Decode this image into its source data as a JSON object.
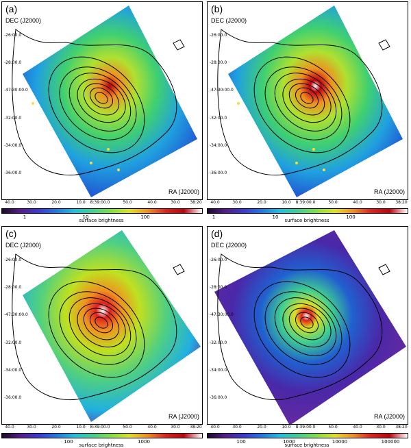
{
  "panels": [
    {
      "label": "(a)",
      "dec_label": "DEC (J2000)",
      "ra_label": "RA (J2000)",
      "y_ticks": [
        "-26:00.0",
        "-28:00.0",
        "-47:30:00.0",
        "-32:00.0",
        "-34:00.0",
        "-36:00.0"
      ],
      "x_ticks": [
        "40.0",
        "30.0",
        "20.0",
        "10.0",
        "8:39:00.0",
        "50.0",
        "40.0",
        "30.0",
        "38:20"
      ],
      "colorbar_ticks": [
        "1",
        "10",
        "100"
      ],
      "colorbar_title": "surface brightness"
    },
    {
      "label": "(b)",
      "dec_label": "DEC (J2000)",
      "ra_label": "RA (J2000)",
      "y_ticks": [
        "-26:00.0",
        "-28:00.0",
        "-47:30:00.0",
        "-32:00.0",
        "-34:00.0",
        "-36:00.0"
      ],
      "x_ticks": [
        "40.0",
        "30.0",
        "20.0",
        "10.0",
        "8:39:00.0",
        "50.0",
        "40.0",
        "30.0",
        "38:20"
      ],
      "colorbar_ticks": [
        "1",
        "10",
        "100"
      ],
      "colorbar_title": "surface brightness"
    },
    {
      "label": "(c)",
      "dec_label": "DEC (J2000)",
      "ra_label": "RA (J2000)",
      "y_ticks": [
        "-26:00.0",
        "-28:00.0",
        "-47:30:00.0",
        "-32:00.0",
        "-34:00.0",
        "-36:00.0"
      ],
      "x_ticks": [
        "40.0",
        "30.0",
        "20.0",
        "10.0",
        "8:39:00.0",
        "50.0",
        "40.0",
        "30.0",
        "38:20"
      ],
      "colorbar_ticks": [
        "100",
        "1000"
      ],
      "colorbar_title": "surface brightness"
    },
    {
      "label": "(d)",
      "dec_label": "DEC (J2000)",
      "ra_label": "RA (J2000)",
      "y_ticks": [
        "-26:00.0",
        "-28:00.0",
        "-47:30:00.0",
        "-32:00.0",
        "-34:00.0",
        "-36:00.0"
      ],
      "x_ticks": [
        "40.0",
        "30.0",
        "20.0",
        "10.0",
        "8:39:00.0",
        "50.0",
        "40.0",
        "30.0",
        "38:20"
      ],
      "colorbar_ticks": [
        "100",
        "1000",
        "10000",
        "100000"
      ],
      "colorbar_title": "surface brightness"
    }
  ],
  "colors": {
    "colormap": [
      "#1a0a2e",
      "#5a1a8c",
      "#3a3ad0",
      "#1e7ae0",
      "#20c0e0",
      "#40d090",
      "#80e040",
      "#e0e020",
      "#f09020",
      "#e02020",
      "#c00010",
      "#ffffff"
    ]
  }
}
